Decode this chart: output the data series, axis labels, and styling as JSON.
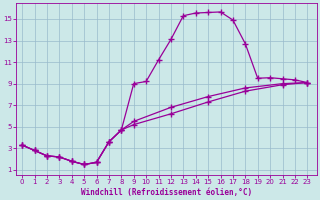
{
  "bg_color": "#cce8e8",
  "grid_color": "#99bbcc",
  "line_color": "#990099",
  "marker": "+",
  "markersize": 4,
  "markeredgewidth": 1.0,
  "linewidth": 0.9,
  "xlabel": "Windchill (Refroidissement éolien,°C)",
  "yticks": [
    1,
    3,
    5,
    7,
    9,
    11,
    13,
    15
  ],
  "xticks": [
    0,
    1,
    2,
    3,
    4,
    5,
    6,
    7,
    8,
    9,
    10,
    11,
    12,
    13,
    14,
    15,
    16,
    17,
    18,
    19,
    20,
    21,
    22,
    23
  ],
  "xlim": [
    -0.5,
    23.8
  ],
  "ylim": [
    0.5,
    16.5
  ],
  "curve1": [
    [
      0,
      3.3
    ],
    [
      1,
      2.8
    ],
    [
      2,
      2.3
    ],
    [
      3,
      2.2
    ],
    [
      4,
      1.8
    ],
    [
      5,
      1.5
    ],
    [
      6,
      1.7
    ],
    [
      7,
      3.6
    ],
    [
      8,
      4.7
    ],
    [
      9,
      9.0
    ],
    [
      10,
      9.2
    ],
    [
      11,
      11.2
    ],
    [
      12,
      13.1
    ],
    [
      13,
      15.3
    ],
    [
      14,
      15.55
    ],
    [
      15,
      15.6
    ],
    [
      16,
      15.65
    ],
    [
      17,
      14.9
    ],
    [
      18,
      12.7
    ],
    [
      19,
      9.5
    ],
    [
      20,
      9.55
    ],
    [
      21,
      9.45
    ],
    [
      22,
      9.35
    ],
    [
      23,
      9.1
    ]
  ],
  "curve2": [
    [
      0,
      3.3
    ],
    [
      1,
      2.8
    ],
    [
      2,
      2.3
    ],
    [
      3,
      2.2
    ],
    [
      4,
      1.8
    ],
    [
      5,
      1.5
    ],
    [
      6,
      1.7
    ],
    [
      7,
      3.6
    ],
    [
      8,
      4.7
    ],
    [
      9,
      5.2
    ],
    [
      12,
      6.2
    ],
    [
      15,
      7.3
    ],
    [
      18,
      8.3
    ],
    [
      21,
      8.9
    ],
    [
      23,
      9.1
    ]
  ],
  "curve3": [
    [
      0,
      3.3
    ],
    [
      1,
      2.8
    ],
    [
      2,
      2.3
    ],
    [
      3,
      2.2
    ],
    [
      4,
      1.8
    ],
    [
      5,
      1.5
    ],
    [
      6,
      1.7
    ],
    [
      7,
      3.6
    ],
    [
      8,
      4.7
    ],
    [
      9,
      5.5
    ],
    [
      12,
      6.8
    ],
    [
      15,
      7.8
    ],
    [
      18,
      8.6
    ],
    [
      21,
      9.0
    ],
    [
      23,
      9.1
    ]
  ]
}
